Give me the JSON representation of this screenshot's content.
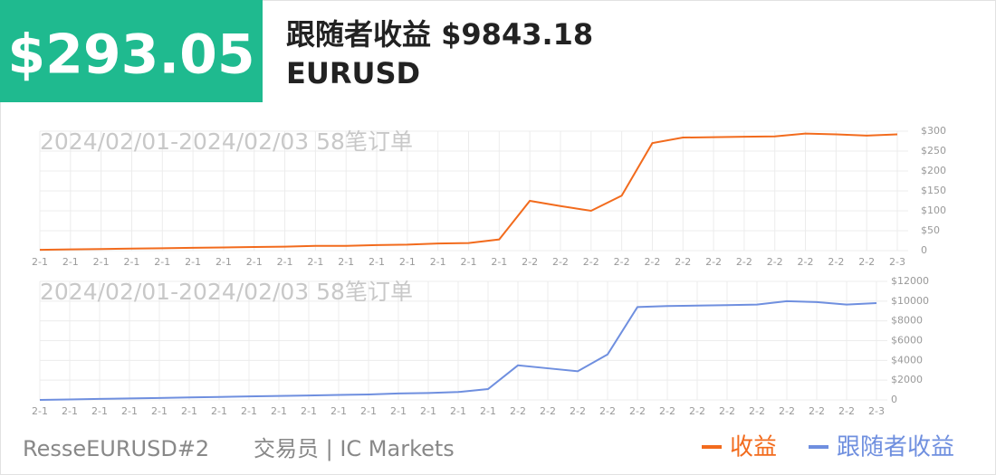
{
  "header": {
    "badge": "$293.05",
    "title": "跟随者收益 $9843.18",
    "symbol": "EURUSD"
  },
  "footer": {
    "account": "ResseEURUSD#2",
    "trader": "交易员 | IC Markets"
  },
  "chart_data": [
    {
      "type": "line",
      "annotation": "2024/02/01-2024/02/03 58笔订单",
      "categories": [
        "2-1",
        "2-1",
        "2-1",
        "2-1",
        "2-1",
        "2-1",
        "2-1",
        "2-1",
        "2-1",
        "2-1",
        "2-1",
        "2-1",
        "2-1",
        "2-1",
        "2-1",
        "2-1",
        "2-2",
        "2-2",
        "2-2",
        "2-2",
        "2-2",
        "2-2",
        "2-2",
        "2-2",
        "2-2",
        "2-2",
        "2-2",
        "2-2",
        "2-3"
      ],
      "series": [
        {
          "name": "收益",
          "color": "#f26b1d",
          "values": [
            2,
            3,
            4,
            5,
            6,
            7,
            8,
            9,
            10,
            12,
            12,
            14,
            15,
            18,
            19,
            28,
            125,
            112,
            100,
            138,
            270,
            284,
            285,
            286,
            287,
            294,
            292,
            289,
            292
          ]
        }
      ],
      "ylim": [
        0,
        300
      ],
      "yticks": [
        0,
        {
          "value": 50,
          "label": "$50"
        },
        {
          "value": 100,
          "label": "$100"
        },
        {
          "value": 150,
          "label": "$150"
        },
        {
          "value": 200,
          "label": "$200"
        },
        {
          "value": 250,
          "label": "$250"
        },
        {
          "value": 300,
          "label": "$300"
        }
      ],
      "grid": true
    },
    {
      "type": "line",
      "annotation": "2024/02/01-2024/02/03 58笔订单",
      "categories": [
        "2-1",
        "2-1",
        "2-1",
        "2-1",
        "2-1",
        "2-1",
        "2-1",
        "2-1",
        "2-1",
        "2-1",
        "2-1",
        "2-1",
        "2-1",
        "2-1",
        "2-1",
        "2-1",
        "2-2",
        "2-2",
        "2-2",
        "2-2",
        "2-2",
        "2-2",
        "2-2",
        "2-2",
        "2-2",
        "2-2",
        "2-2",
        "2-2",
        "2-3"
      ],
      "series": [
        {
          "name": "跟随者收益",
          "color": "#6f8fdf",
          "values": [
            0,
            50,
            100,
            150,
            200,
            250,
            300,
            350,
            400,
            450,
            500,
            550,
            650,
            700,
            800,
            1100,
            3500,
            3200,
            2900,
            4600,
            9400,
            9500,
            9550,
            9600,
            9650,
            10000,
            9900,
            9650,
            9800
          ]
        }
      ],
      "ylim": [
        0,
        12000
      ],
      "yticks": [
        0,
        {
          "value": 2000,
          "label": "$2000"
        },
        {
          "value": 4000,
          "label": "$4000"
        },
        {
          "value": 6000,
          "label": "$6000"
        },
        {
          "value": 8000,
          "label": "$8000"
        },
        {
          "value": 10000,
          "label": "$10000"
        },
        {
          "value": 12000,
          "label": "$12000"
        }
      ],
      "grid": true
    }
  ]
}
